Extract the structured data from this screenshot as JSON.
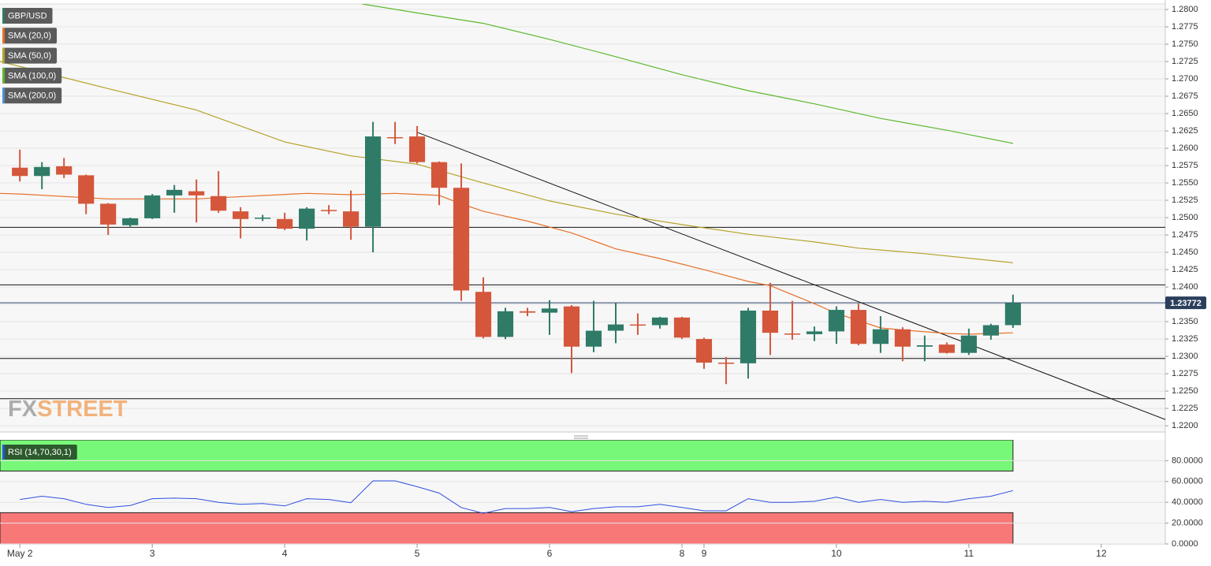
{
  "chart_data": [
    {
      "type": "candlestick",
      "x": [
        0,
        1,
        2,
        3,
        4,
        5,
        6,
        7,
        8,
        9,
        10,
        11,
        12,
        13,
        14,
        15,
        16,
        17,
        18,
        19,
        20,
        21,
        22,
        23,
        24,
        25,
        26,
        27,
        28,
        29,
        30,
        31,
        32,
        33,
        34,
        35,
        36,
        37,
        38,
        39,
        40,
        41,
        42,
        43,
        44,
        45
      ],
      "open": [
        1.2572,
        1.256,
        1.2574,
        1.2561,
        1.252,
        1.2489,
        1.2499,
        1.2532,
        1.2538,
        1.2531,
        1.2509,
        1.2499,
        1.2498,
        1.2484,
        1.2511,
        1.2509,
        1.2487,
        1.2616,
        1.2617,
        1.258,
        1.2543,
        1.2393,
        1.2328,
        1.2365,
        1.2363,
        1.2372,
        1.2314,
        1.2337,
        1.2346,
        1.2345,
        1.2356,
        1.2325,
        1.2291,
        1.229,
        1.2366,
        1.2333,
        1.2332,
        1.2336,
        1.2367,
        1.2318,
        1.2339,
        1.2314,
        1.2317,
        1.2305,
        1.233,
        1.2345
      ],
      "high": [
        1.2598,
        1.258,
        1.2586,
        1.2562,
        1.2521,
        1.25,
        1.2534,
        1.2547,
        1.2555,
        1.2567,
        1.2515,
        1.2504,
        1.2507,
        1.2515,
        1.2518,
        1.2539,
        1.2638,
        1.2638,
        1.2632,
        1.2581,
        1.2578,
        1.2414,
        1.237,
        1.237,
        1.2381,
        1.2374,
        1.238,
        1.2377,
        1.2362,
        1.2357,
        1.2357,
        1.2327,
        1.2299,
        1.237,
        1.2406,
        1.238,
        1.2343,
        1.2372,
        1.2376,
        1.2358,
        1.2342,
        1.233,
        1.232,
        1.234,
        1.2347,
        1.2389
      ],
      "low": [
        1.2552,
        1.2541,
        1.2557,
        1.2505,
        1.2475,
        1.2486,
        1.2498,
        1.2507,
        1.2493,
        1.2507,
        1.247,
        1.2495,
        1.2482,
        1.2467,
        1.2505,
        1.2468,
        1.245,
        1.2606,
        1.2578,
        1.2518,
        1.238,
        1.2326,
        1.2325,
        1.2358,
        1.2331,
        1.2276,
        1.2306,
        1.2319,
        1.2331,
        1.234,
        1.2325,
        1.2282,
        1.226,
        1.2268,
        1.2302,
        1.2324,
        1.2322,
        1.2318,
        1.2316,
        1.2305,
        1.2293,
        1.2293,
        1.2304,
        1.2302,
        1.2324,
        1.2341
      ],
      "close": [
        1.256,
        1.2573,
        1.2562,
        1.252,
        1.249,
        1.2499,
        1.2532,
        1.254,
        1.2532,
        1.251,
        1.2498,
        1.25,
        1.2484,
        1.2513,
        1.251,
        1.2487,
        1.2617,
        1.2615,
        1.258,
        1.2543,
        1.2395,
        1.2328,
        1.2365,
        1.2363,
        1.2369,
        1.2314,
        1.2337,
        1.2346,
        1.2345,
        1.2356,
        1.2327,
        1.2291,
        1.229,
        1.2366,
        1.2334,
        1.2332,
        1.2336,
        1.2367,
        1.2318,
        1.2339,
        1.2314,
        1.2316,
        1.2305,
        1.233,
        1.2345,
        1.2377
      ],
      "up_color": "#2f7b68",
      "down_color": "#d4573b",
      "series": [
        {
          "name": "GBP/USD",
          "color": "#2f7b68"
        },
        {
          "name": "SMA (20,0)",
          "color": "#e8712a",
          "x": [
            -0.9,
            0,
            4,
            8,
            13,
            15,
            17,
            19,
            20,
            21,
            23,
            25,
            27,
            29,
            31,
            33,
            34,
            36,
            37,
            39,
            40,
            42,
            43,
            45
          ],
          "values": [
            1.2535,
            1.2534,
            1.2527,
            1.2527,
            1.2535,
            1.2533,
            1.2535,
            1.2532,
            1.252,
            1.2509,
            1.2495,
            1.2478,
            1.2455,
            1.2441,
            1.2425,
            1.2408,
            1.2402,
            1.2376,
            1.2362,
            1.2341,
            1.2338,
            1.2333,
            1.2332,
            1.2334
          ]
        },
        {
          "name": "SMA (50,0)",
          "color": "#b5a22a",
          "x": [
            -0.9,
            4,
            8,
            12,
            15,
            18,
            21,
            24,
            27,
            30,
            33,
            36,
            38,
            41,
            45
          ],
          "values": [
            1.2725,
            1.2686,
            1.2655,
            1.2609,
            1.2589,
            1.2577,
            1.255,
            1.2524,
            1.2505,
            1.249,
            1.2476,
            1.2465,
            1.2456,
            1.2448,
            1.2435
          ]
        },
        {
          "name": "SMA (100,0)",
          "color": "#5cb82e",
          "x": [
            15.5,
            18,
            21,
            24,
            27,
            30,
            33,
            36,
            39,
            42,
            45
          ],
          "values": [
            1.2808,
            1.2795,
            1.278,
            1.2757,
            1.2732,
            1.2706,
            1.2683,
            1.2664,
            1.2643,
            1.2626,
            1.2607
          ]
        },
        {
          "name": "SMA (200,0)",
          "color": "#4a90d9"
        }
      ],
      "levels": [
        1.2486,
        1.2403,
        1.2297,
        1.2239
      ],
      "trendline": {
        "x": [
          18,
          51.9
        ],
        "values": [
          1.2623,
          1.2209
        ]
      },
      "last_price": 1.23772,
      "watermark": [
        "FX",
        "STREET"
      ],
      "xlim": [
        -0.9,
        51.9
      ],
      "ylim": [
        1.2191,
        1.2808
      ],
      "yticks": [
        {
          "value": 1.22,
          "label": "1.2200"
        },
        {
          "value": 1.2225,
          "label": "1.2225"
        },
        {
          "value": 1.225,
          "label": "1.2250"
        },
        {
          "value": 1.2275,
          "label": "1.2275"
        },
        {
          "value": 1.23,
          "label": "1.2300"
        },
        {
          "value": 1.2325,
          "label": "1.2325"
        },
        {
          "value": 1.235,
          "label": "1.2350"
        },
        {
          "value": 1.2375,
          "label": "1.2375"
        },
        {
          "value": 1.24,
          "label": "1.2400"
        },
        {
          "value": 1.2425,
          "label": "1.2425"
        },
        {
          "value": 1.245,
          "label": "1.2450"
        },
        {
          "value": 1.2475,
          "label": "1.2475"
        },
        {
          "value": 1.25,
          "label": "1.2500"
        },
        {
          "value": 1.2525,
          "label": "1.2525"
        },
        {
          "value": 1.255,
          "label": "1.2550"
        },
        {
          "value": 1.2575,
          "label": "1.2575"
        },
        {
          "value": 1.26,
          "label": "1.2600"
        },
        {
          "value": 1.2625,
          "label": "1.2625"
        },
        {
          "value": 1.265,
          "label": "1.2650"
        },
        {
          "value": 1.2675,
          "label": "1.2675"
        },
        {
          "value": 1.27,
          "label": "1.2700"
        },
        {
          "value": 1.2725,
          "label": "1.2725"
        },
        {
          "value": 1.275,
          "label": "1.2750"
        },
        {
          "value": 1.2775,
          "label": "1.2775"
        },
        {
          "value": 1.28,
          "label": "1.2800"
        }
      ],
      "grid": true
    },
    {
      "type": "line",
      "name": "RSI (14,70,30,1)",
      "color": "#2f4fe0",
      "x": [
        0,
        1,
        2,
        3,
        4,
        5,
        6,
        7,
        8,
        9,
        10,
        11,
        12,
        13,
        14,
        15,
        16,
        17,
        18,
        19,
        20,
        21,
        22,
        23,
        24,
        25,
        26,
        27,
        28,
        29,
        30,
        31,
        32,
        33,
        34,
        35,
        36,
        37,
        38,
        39,
        40,
        41,
        42,
        43,
        44,
        45
      ],
      "values": [
        42.7,
        45.8,
        43.5,
        38,
        35,
        37,
        43.5,
        44,
        43.5,
        40,
        38,
        38.8,
        36.5,
        43.5,
        42.7,
        39.6,
        60.6,
        60.6,
        55,
        48.9,
        35,
        29.5,
        34,
        34,
        35,
        31,
        34,
        35.7,
        35.7,
        38,
        35,
        31.8,
        31.8,
        43.5,
        40,
        40,
        41,
        45,
        40,
        42.7,
        40,
        41,
        40,
        43.5,
        45.8,
        51.3
      ],
      "zones": [
        {
          "from": 70,
          "to": 100,
          "color": "#78f878"
        },
        {
          "from": 0,
          "to": 30,
          "color": "#f87878"
        }
      ],
      "xlim": [
        -0.9,
        51.9
      ],
      "ylim": [
        0,
        100
      ],
      "yticks": [
        {
          "value": 0,
          "label": "0.0000"
        },
        {
          "value": 20,
          "label": "20.0000"
        },
        {
          "value": 40,
          "label": "40.0000"
        },
        {
          "value": 60,
          "label": "60.0000"
        },
        {
          "value": 80,
          "label": "80.0000"
        }
      ],
      "xticks": [
        {
          "value": 0,
          "label": "May 2"
        },
        {
          "value": 6,
          "label": "3"
        },
        {
          "value": 12,
          "label": "4"
        },
        {
          "value": 18,
          "label": "5"
        },
        {
          "value": 24,
          "label": "6"
        },
        {
          "value": 30,
          "label": "8"
        },
        {
          "value": 31,
          "label": "9"
        },
        {
          "value": 37,
          "label": "10"
        },
        {
          "value": 43,
          "label": "11"
        },
        {
          "value": 49,
          "label": "12"
        }
      ],
      "grid": true
    }
  ]
}
